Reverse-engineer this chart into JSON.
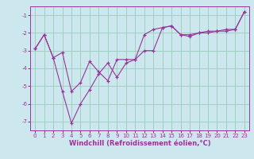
{
  "xlabel": "Windchill (Refroidissement éolien,°C)",
  "bg_color": "#cce8ee",
  "line_color": "#993399",
  "grid_color": "#99ccbb",
  "x_line1": [
    0,
    1,
    2,
    3,
    4,
    5,
    6,
    7,
    8,
    9,
    10,
    11,
    12,
    13,
    14,
    15,
    16,
    17,
    18,
    19,
    20,
    21,
    22,
    23
  ],
  "y_line1": [
    -2.9,
    -2.1,
    -3.4,
    -5.3,
    -7.1,
    -6.0,
    -5.2,
    -4.3,
    -3.7,
    -4.5,
    -3.7,
    -3.5,
    -3.0,
    -3.0,
    -1.7,
    -1.6,
    -2.1,
    -2.1,
    -2.0,
    -1.9,
    -1.9,
    -1.8,
    -1.8,
    -0.8
  ],
  "x_line2": [
    0,
    1,
    2,
    3,
    4,
    5,
    6,
    7,
    8,
    9,
    10,
    11,
    12,
    13,
    14,
    15,
    16,
    17,
    18,
    19,
    20,
    21,
    22,
    23
  ],
  "y_line2": [
    -2.9,
    -2.1,
    -3.4,
    -3.1,
    -5.3,
    -4.8,
    -3.6,
    -4.2,
    -4.7,
    -3.5,
    -3.5,
    -3.5,
    -2.1,
    -1.8,
    -1.7,
    -1.6,
    -2.1,
    -2.2,
    -2.0,
    -2.0,
    -1.9,
    -1.9,
    -1.8,
    -0.8
  ],
  "ylim": [
    -7.5,
    -0.5
  ],
  "xlim": [
    -0.5,
    23.5
  ],
  "yticks": [
    -7,
    -6,
    -5,
    -4,
    -3,
    -2,
    -1
  ],
  "xticks": [
    0,
    1,
    2,
    3,
    4,
    5,
    6,
    7,
    8,
    9,
    10,
    11,
    12,
    13,
    14,
    15,
    16,
    17,
    18,
    19,
    20,
    21,
    22,
    23
  ],
  "tick_fontsize": 5.0,
  "xlabel_fontsize": 6.0
}
